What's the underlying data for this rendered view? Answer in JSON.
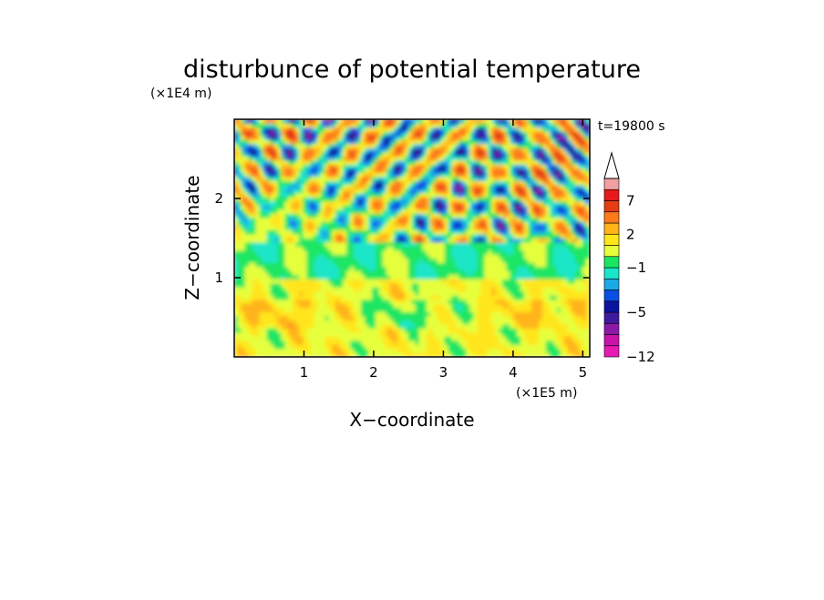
{
  "chart_data": {
    "type": "heatmap",
    "title": "disturbunce of potential temperature",
    "time_label": "t=19800 s",
    "xlabel": "X−coordinate",
    "ylabel": "Z−coordinate",
    "x_unit": "(×1E5 m)",
    "y_unit": "(×1E4 m)",
    "xlim": [
      0,
      5.1
    ],
    "ylim": [
      0,
      3.0
    ],
    "x_ticks": [
      {
        "value": 1,
        "label": "1"
      },
      {
        "value": 2,
        "label": "2"
      },
      {
        "value": 3,
        "label": "3"
      },
      {
        "value": 4,
        "label": "4"
      },
      {
        "value": 5,
        "label": "5"
      }
    ],
    "y_ticks": [
      {
        "value": 1,
        "label": "1"
      },
      {
        "value": 2,
        "label": "2"
      }
    ],
    "colorbar": {
      "levels_bottom_to_top": [
        -12,
        -10,
        -8,
        -6,
        -5,
        -4,
        -3,
        -2,
        -1,
        0,
        1,
        2,
        3,
        5,
        7,
        9,
        12
      ],
      "colors_bottom_to_top": [
        "#e619b3",
        "#c814a8",
        "#8c1aa8",
        "#3e1aa0",
        "#0a14a0",
        "#0a50e6",
        "#1aa8e6",
        "#1ae6c8",
        "#1ae664",
        "#e6ff3c",
        "#ffe61a",
        "#ffb41a",
        "#ff7a1a",
        "#e63c14",
        "#e61a1a",
        "#f0a0a0"
      ],
      "tick_labels": [
        {
          "level": 7,
          "label": "7"
        },
        {
          "level": 2,
          "label": "2"
        },
        {
          "level": -1,
          "label": "−1"
        },
        {
          "level": -5,
          "label": "−5"
        },
        {
          "level": -12,
          "label": "−12"
        }
      ],
      "extend": "max"
    }
  }
}
